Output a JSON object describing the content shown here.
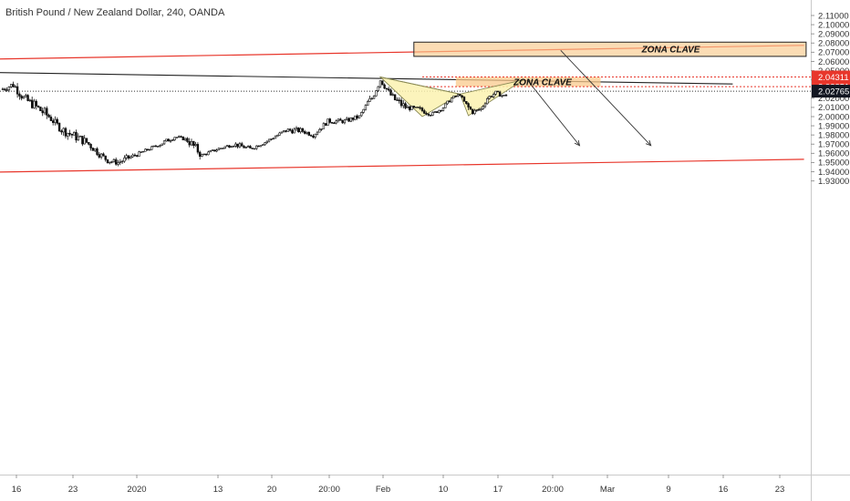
{
  "title": "British Pound / New Zealand Dollar, 240, OANDA",
  "colors": {
    "background": "#ffffff",
    "candle": "#111111",
    "channel_line": "#e8362b",
    "trend_line": "#222222",
    "zone_fill": "#f9c98c",
    "pattern_fill": "#fbf2b0",
    "level_red": "#e8362b",
    "last_price_bg": "#131722"
  },
  "chart_data": {
    "type": "candlestick",
    "instrument": "British Pound / New Zealand Dollar",
    "timeframe": "240",
    "source": "OANDA",
    "x_tick_labels": [
      "16",
      "23",
      "2020",
      "13",
      "20",
      "20:00",
      "Feb",
      "10",
      "17",
      "20:00",
      "Mar",
      "9",
      "16",
      "23"
    ],
    "y_tick_labels": [
      "2.11000",
      "2.10000",
      "2.09000",
      "2.08000",
      "2.07000",
      "2.06000",
      "2.05000",
      "2.04000",
      "2.02000",
      "2.01000",
      "2.00000",
      "1.99000",
      "1.98000",
      "1.97000",
      "1.96000",
      "1.95000",
      "1.94000",
      "1.93000"
    ],
    "ylim": [
      1.925,
      2.115
    ],
    "price_path": [
      [
        0,
        2.03,
        2.05,
        2.035
      ],
      [
        5,
        2.035,
        2.04,
        2.02
      ],
      [
        10,
        2.02,
        2.03,
        2.01
      ],
      [
        15,
        2.012,
        2.025,
        2.0
      ],
      [
        22,
        2.0,
        2.002,
        1.985
      ],
      [
        28,
        1.986,
        1.99,
        1.97
      ],
      [
        40,
        1.972,
        1.975,
        1.958
      ],
      [
        47,
        1.958,
        1.962,
        1.95
      ],
      [
        50,
        1.952,
        1.96,
        1.948
      ],
      [
        55,
        1.95,
        1.958,
        1.943
      ],
      [
        60,
        1.955,
        1.96,
        1.95
      ],
      [
        65,
        1.96,
        1.965,
        1.958
      ],
      [
        75,
        1.97,
        1.975,
        1.965
      ],
      [
        82,
        1.978,
        1.982,
        1.975
      ],
      [
        88,
        1.975,
        1.98,
        1.96
      ],
      [
        95,
        1.958,
        1.962,
        1.955
      ],
      [
        103,
        1.965,
        1.97,
        1.962
      ],
      [
        110,
        1.97,
        1.975,
        1.965
      ],
      [
        118,
        1.965,
        1.97,
        1.962
      ],
      [
        125,
        1.972,
        1.978,
        1.97
      ],
      [
        135,
        1.985,
        1.995,
        1.983
      ],
      [
        142,
        1.985,
        1.99,
        1.98
      ],
      [
        148,
        1.98,
        1.985,
        1.975
      ],
      [
        155,
        1.995,
        2.0,
        1.99
      ],
      [
        163,
        1.995,
        2.0,
        1.99
      ],
      [
        170,
        2.0,
        2.005,
        1.997
      ],
      [
        174,
        2.015,
        2.02,
        2.005
      ],
      [
        176,
        2.02,
        2.03,
        2.015
      ],
      [
        180,
        2.04,
        2.043,
        2.03
      ],
      [
        186,
        2.02,
        2.03,
        2.01
      ],
      [
        192,
        2.01,
        2.015,
        2.005
      ],
      [
        198,
        2.008,
        2.012,
        2.0
      ],
      [
        205,
        2.003,
        2.007,
        1.999
      ],
      [
        210,
        2.01,
        2.015,
        2.007
      ],
      [
        214,
        2.02,
        2.025,
        2.018
      ],
      [
        218,
        2.024,
        2.026,
        2.02
      ],
      [
        221,
        2.012,
        2.02,
        2.002
      ],
      [
        224,
        2.005,
        2.01,
        2.0
      ],
      [
        228,
        2.008,
        2.012,
        2.002
      ],
      [
        231,
        2.02,
        2.025,
        2.015
      ],
      [
        235,
        2.026,
        2.028,
        2.02
      ],
      [
        239,
        2.022,
        2.028,
        2.017
      ],
      [
        241,
        2.027,
        2.029,
        2.024
      ]
    ],
    "overlays": {
      "channel_lines": [
        {
          "x1": -5,
          "y1": 2.0625,
          "x2": 382,
          "y2": 2.0775
        },
        {
          "x1": -5,
          "y1": 1.9395,
          "x2": 382,
          "y2": 1.9535
        }
      ],
      "trend_line": {
        "x1": -5,
        "y1": 2.048,
        "x2": 348,
        "y2": 2.0355
      },
      "zones": [
        {
          "label": "ZONA CLAVE",
          "x1": 196,
          "x2": 383,
          "y_top": 2.081,
          "y_bottom": 2.0655,
          "outlined": true
        },
        {
          "label": "ZONA CLAVE",
          "x1": 216,
          "x2": 285,
          "y_top": 2.0431,
          "y_bottom": 2.0325,
          "outlined": false
        }
      ],
      "pattern_points": [
        [
          180,
          2.0431
        ],
        [
          200,
          2.0
        ],
        [
          218,
          2.0245
        ],
        [
          222,
          2.001
        ],
        [
          248,
          2.0398
        ]
      ],
      "arrows": [
        {
          "x1": 250,
          "y1": 2.04,
          "x2": 275,
          "y2": 1.9685
        },
        {
          "x1": 266,
          "y1": 2.072,
          "x2": 309,
          "y2": 1.9685
        }
      ],
      "price_levels": [
        {
          "price": 2.04311,
          "label": "2.04311",
          "style": "dotted-red"
        },
        {
          "price": 2.03251,
          "label": "2.03251",
          "style": "dotted-red"
        },
        {
          "price": 2.02765,
          "label": "2.02765",
          "style": "dotted-black"
        }
      ]
    },
    "last_price": "2.02765"
  }
}
